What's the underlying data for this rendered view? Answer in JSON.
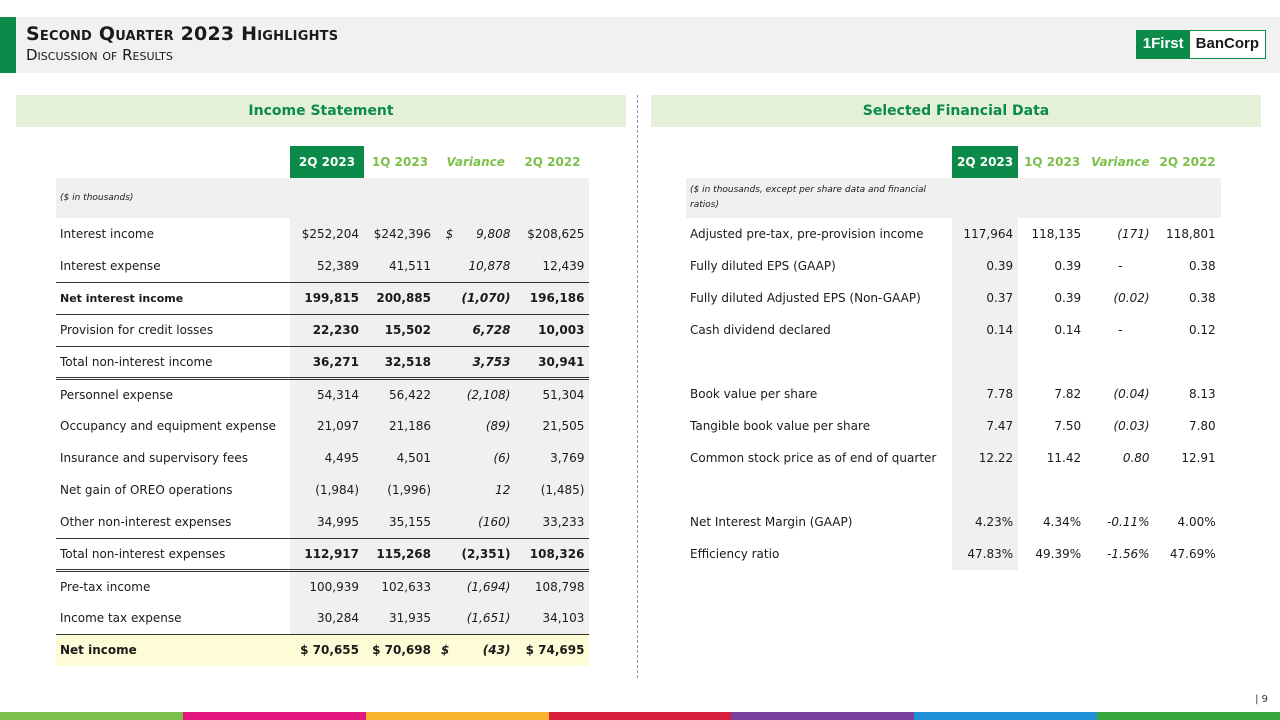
{
  "header": {
    "title": "Second Quarter 2023 Highlights",
    "subtitle": "Discussion of Results",
    "logo": {
      "first": "1First",
      "bancorp": "BanCorp"
    }
  },
  "colors": {
    "brand_green": "#0b8a4a",
    "light_green": "#e4f1d8",
    "accent_green": "#7cc04a"
  },
  "income_statement": {
    "heading": "Income Statement",
    "columns": [
      "2Q 2023",
      "1Q 2023",
      "Variance",
      "2Q 2022"
    ],
    "note": "($ in thousands)",
    "rows": [
      {
        "label": "Interest income",
        "values": [
          "$252,204",
          "$242,396",
          "$      9,808",
          "$208,625"
        ]
      },
      {
        "label": "Interest expense",
        "values": [
          "52,389",
          "41,511",
          "10,878",
          "12,439"
        ]
      },
      {
        "label": "Net interest income",
        "values": [
          "199,815",
          "200,885",
          "(1,070)",
          "196,186"
        ]
      },
      {
        "label": "Provision for credit losses",
        "values": [
          "22,230",
          "15,502",
          "6,728",
          "10,003"
        ]
      },
      {
        "label": "Total non-interest income",
        "values": [
          "36,271",
          "32,518",
          "3,753",
          "30,941"
        ]
      },
      {
        "label": "Personnel expense",
        "values": [
          "54,314",
          "56,422",
          "(2,108)",
          "51,304"
        ]
      },
      {
        "label": "Occupancy and equipment expense",
        "values": [
          "21,097",
          "21,186",
          "(89)",
          "21,505"
        ]
      },
      {
        "label": "Insurance and supervisory fees",
        "values": [
          "4,495",
          "4,501",
          "(6)",
          "3,769"
        ]
      },
      {
        "label": "Net gain of OREO operations",
        "values": [
          "(1,984)",
          "(1,996)",
          "12",
          "(1,485)"
        ]
      },
      {
        "label": "Other non-interest expenses",
        "values": [
          "34,995",
          "35,155",
          "(160)",
          "33,233"
        ]
      },
      {
        "label": "Total non-interest expenses",
        "values": [
          "112,917",
          "115,268",
          "(2,351)",
          "108,326"
        ]
      },
      {
        "label": "Pre-tax income",
        "values": [
          "100,939",
          "102,633",
          "(1,694)",
          "108,798"
        ]
      },
      {
        "label": "Income tax expense",
        "values": [
          "30,284",
          "31,935",
          "(1,651)",
          "34,103"
        ]
      },
      {
        "label": "Net income",
        "values": [
          "$ 70,655",
          "$ 70,698",
          "$        (43)",
          "$ 74,695"
        ]
      }
    ]
  },
  "selected_financial_data": {
    "heading": "Selected Financial Data",
    "columns": [
      "2Q 2023",
      "1Q 2023",
      "Variance",
      "2Q 2022"
    ],
    "note": "($ in thousands, except per share data and financial ratios)",
    "rows": [
      {
        "label": "Adjusted pre-tax, pre-provision income",
        "values": [
          "117,964",
          "118,135",
          "(171)",
          "118,801"
        ]
      },
      {
        "label": "Fully diluted EPS (GAAP)",
        "values": [
          "0.39",
          "0.39",
          "-",
          "0.38"
        ]
      },
      {
        "label": "Fully diluted Adjusted EPS (Non-GAAP)",
        "values": [
          "0.37",
          "0.39",
          "(0.02)",
          "0.38"
        ]
      },
      {
        "label": "Cash dividend declared",
        "values": [
          "0.14",
          "0.14",
          "-",
          "0.12"
        ]
      },
      {
        "label": "Book value per share",
        "values": [
          "7.78",
          "7.82",
          "(0.04)",
          "8.13"
        ]
      },
      {
        "label": "Tangible book value per share",
        "values": [
          "7.47",
          "7.50",
          "(0.03)",
          "7.80"
        ]
      },
      {
        "label": "Common stock price as of end of quarter",
        "values": [
          "12.22",
          "11.42",
          "0.80",
          "12.91"
        ]
      },
      {
        "label": "Net Interest Margin (GAAP)",
        "values": [
          "4.23%",
          "4.34%",
          "-0.11%",
          "4.00%"
        ]
      },
      {
        "label": "Efficiency ratio",
        "values": [
          "47.83%",
          "49.39%",
          "-1.56%",
          "47.69%"
        ]
      }
    ]
  },
  "footer": {
    "page_number": "| 9",
    "stripe_colors": [
      "#7cc04a",
      "#e3177f",
      "#f7b32b",
      "#d71f3d",
      "#7b3f9e",
      "#1f8fd6",
      "#37a93c"
    ]
  }
}
